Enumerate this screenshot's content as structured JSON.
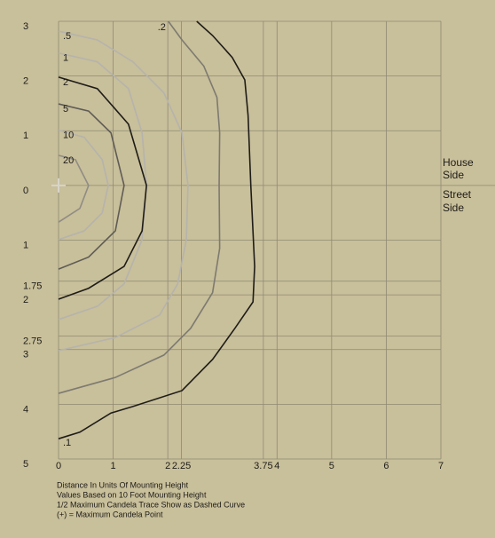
{
  "chart_data": {
    "type": "contour",
    "xlim": [
      0,
      7
    ],
    "ylim": [
      -5,
      3
    ],
    "xticks": [
      0,
      1,
      2,
      2.25,
      3.75,
      4,
      5,
      6,
      7
    ],
    "yticks": [
      3,
      2,
      1,
      0,
      {
        "value": -1,
        "label": "1"
      },
      {
        "value": -1.75,
        "label": "1.75"
      },
      {
        "value": -2,
        "label": "2"
      },
      {
        "value": -2.75,
        "label": "2.75"
      },
      {
        "value": -3,
        "label": "3"
      },
      {
        "value": -4,
        "label": "4"
      },
      {
        "value": -5,
        "label": "5"
      }
    ],
    "grid": true,
    "side_labels": {
      "house": [
        "House",
        "Side"
      ],
      "street": [
        "Street",
        "Side"
      ]
    },
    "notes": [
      "Distance In Units Of Mounting Height",
      "Values Based on 10 Foot Mounting Height",
      "1/2 Maximum Candela Trace Show as Dashed Curve",
      "(+) = Maximum Candela Point"
    ],
    "series": [
      {
        "name": ".1",
        "color": "#1e1c17",
        "x": [
          0,
          0.39,
          0.96,
          1.36,
          2.26,
          2.82,
          3.23,
          3.56,
          3.59,
          3.52,
          3.47,
          3.41,
          3.18,
          2.82,
          2.53
        ],
        "y": [
          -4.63,
          -4.51,
          -4.16,
          -4.04,
          -3.75,
          -3.18,
          -2.61,
          -2.13,
          -1.48,
          0,
          1.28,
          1.93,
          2.34,
          2.74,
          3
        ]
      },
      {
        "name": ".2",
        "color": "#7d7a70",
        "x": [
          2.01,
          2.26,
          2.66,
          2.9,
          2.95,
          2.94,
          2.95,
          2.82,
          2.42,
          1.93,
          1.04,
          0
        ],
        "y": [
          3,
          2.66,
          2.18,
          1.61,
          0.96,
          0,
          -1.15,
          -1.96,
          -2.61,
          -3.1,
          -3.51,
          -3.8
        ]
      },
      {
        "name": ".5",
        "color": "#b5b3ac",
        "x": [
          0,
          0.71,
          1.36,
          1.93,
          2.26,
          2.37,
          2.34,
          2.18,
          1.85,
          1.04,
          0
        ],
        "y": [
          2.82,
          2.66,
          2.26,
          1.69,
          0.96,
          0,
          -0.99,
          -1.8,
          -2.37,
          -2.78,
          -3.02
        ]
      },
      {
        "name": "1",
        "color": "#b5b3ac",
        "x": [
          0,
          0.71,
          1.28,
          1.53,
          1.61,
          1.53,
          1.2,
          0.71,
          0
        ],
        "y": [
          2.42,
          2.26,
          1.77,
          0.96,
          0,
          -0.99,
          -1.8,
          -2.21,
          -2.45
        ]
      },
      {
        "name": "2",
        "color": "#1e1c17",
        "x": [
          0,
          0.71,
          1.28,
          1.61,
          1.53,
          1.2,
          0.55,
          0
        ],
        "y": [
          1.98,
          1.77,
          1.12,
          0,
          -0.83,
          -1.48,
          -1.88,
          -2.08
        ]
      },
      {
        "name": "5",
        "color": "#5f5c55",
        "x": [
          0,
          0.55,
          0.96,
          1.2,
          1.04,
          0.55,
          0
        ],
        "y": [
          1.49,
          1.36,
          0.96,
          0,
          -0.83,
          -1.31,
          -1.53
        ]
      },
      {
        "name": "10",
        "color": "#b5b3ac",
        "x": [
          0,
          0.47,
          0.8,
          0.91,
          0.8,
          0.47,
          0
        ],
        "y": [
          1.01,
          0.88,
          0.47,
          0,
          -0.5,
          -0.83,
          -0.99
        ]
      },
      {
        "name": "20",
        "color": "#8f8c84",
        "x": [
          0,
          0.31,
          0.55,
          0.39,
          0
        ],
        "y": [
          0.55,
          0.47,
          0,
          -0.42,
          -0.67
        ]
      }
    ]
  }
}
